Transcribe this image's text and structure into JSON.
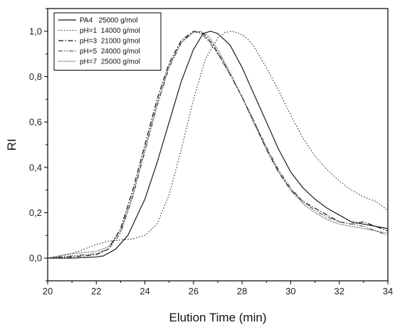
{
  "chart_data": {
    "type": "line",
    "title": "",
    "xlabel": "Elution Time (min)",
    "ylabel": "RI",
    "xlim": [
      20,
      34
    ],
    "ylim": [
      -0.1,
      1.1
    ],
    "x_ticks": [
      20,
      22,
      24,
      26,
      28,
      30,
      32,
      34
    ],
    "x_tick_labels": [
      "20",
      "22",
      "24",
      "26",
      "28",
      "30",
      "32",
      "34"
    ],
    "y_ticks": [
      0.0,
      0.2,
      0.4,
      0.6,
      0.8,
      1.0
    ],
    "y_tick_labels": [
      "0,0",
      "0,2",
      "0,4",
      "0,6",
      "0,8",
      "1,0"
    ],
    "grid": false,
    "legend_position": "top-left",
    "series": [
      {
        "name": "PA4   25000 g/mol",
        "style": "solid",
        "color": "#1a1a1a",
        "x": [
          20,
          21,
          22,
          22.3,
          22.8,
          23.3,
          24,
          24.5,
          25,
          25.5,
          26,
          26.4,
          26.7,
          27,
          27.5,
          28,
          28.5,
          29,
          29.5,
          30,
          30.5,
          31,
          31.5,
          32,
          32.5,
          33,
          33.5,
          34
        ],
        "y": [
          0,
          0,
          0.005,
          0.01,
          0.04,
          0.1,
          0.26,
          0.42,
          0.6,
          0.78,
          0.92,
          0.99,
          1.0,
          0.99,
          0.94,
          0.84,
          0.72,
          0.6,
          0.48,
          0.38,
          0.31,
          0.26,
          0.22,
          0.19,
          0.16,
          0.15,
          0.14,
          0.13
        ]
      },
      {
        "name": "pH=1  14000 g/mol",
        "style": "dotted",
        "color": "#333333",
        "x": [
          20,
          20.5,
          21,
          21.5,
          22,
          22.5,
          23,
          23.5,
          24,
          24.5,
          25,
          25.5,
          26,
          26.5,
          27,
          27.3,
          27.6,
          27.9,
          28.2,
          28.5,
          29,
          29.5,
          30,
          30.5,
          31,
          31.5,
          32,
          32.5,
          33,
          33.5,
          34
        ],
        "y": [
          0,
          0.01,
          0.02,
          0.04,
          0.06,
          0.075,
          0.08,
          0.085,
          0.1,
          0.15,
          0.28,
          0.48,
          0.7,
          0.88,
          0.97,
          0.995,
          1.0,
          0.99,
          0.97,
          0.93,
          0.84,
          0.74,
          0.63,
          0.53,
          0.45,
          0.39,
          0.34,
          0.3,
          0.27,
          0.25,
          0.21
        ]
      },
      {
        "name": "pH=3  21000 g/mol",
        "style": "dashdot",
        "color": "#111111",
        "x": [
          20,
          21,
          21.5,
          22,
          22.5,
          23,
          23.5,
          24,
          24.5,
          25,
          25.5,
          26,
          26.3,
          26.5,
          26.8,
          27.2,
          27.6,
          28,
          28.5,
          29,
          29.5,
          30,
          30.5,
          31,
          31.5,
          32,
          32.5,
          33,
          33.5,
          34
        ],
        "y": [
          0,
          0.005,
          0.01,
          0.015,
          0.04,
          0.13,
          0.3,
          0.5,
          0.7,
          0.86,
          0.96,
          1.0,
          0.995,
          0.98,
          0.94,
          0.87,
          0.79,
          0.71,
          0.6,
          0.48,
          0.38,
          0.3,
          0.25,
          0.22,
          0.19,
          0.16,
          0.15,
          0.16,
          0.14,
          0.12
        ]
      },
      {
        "name": "pH=5  24000 g/mol",
        "style": "dashdotdot",
        "color": "#555555",
        "x": [
          20,
          21,
          22,
          22.5,
          23,
          23.5,
          24,
          24.5,
          25,
          25.5,
          26,
          26.3,
          26.6,
          27,
          27.5,
          28,
          28.5,
          29,
          29.5,
          30,
          30.5,
          31,
          31.5,
          32,
          32.5,
          33,
          33.5,
          34
        ],
        "y": [
          0,
          0.01,
          0.02,
          0.04,
          0.11,
          0.27,
          0.47,
          0.67,
          0.84,
          0.95,
          1.0,
          0.99,
          0.96,
          0.9,
          0.81,
          0.71,
          0.6,
          0.49,
          0.39,
          0.31,
          0.25,
          0.21,
          0.18,
          0.16,
          0.15,
          0.14,
          0.12,
          0.1
        ]
      },
      {
        "name": "pH=7  25000 g/mol",
        "style": "densedot",
        "color": "#222222",
        "x": [
          20,
          20.5,
          21,
          21.5,
          22,
          22.5,
          23,
          23.5,
          24,
          24.5,
          25,
          25.5,
          26,
          26.3,
          26.6,
          27,
          27.5,
          28,
          28.5,
          29,
          29.5,
          30,
          30.5,
          31,
          31.5,
          32,
          32.5,
          33,
          33.5,
          34
        ],
        "y": [
          0,
          0.01,
          0.02,
          0.025,
          0.03,
          0.05,
          0.12,
          0.28,
          0.48,
          0.68,
          0.85,
          0.95,
          0.995,
          1.0,
          0.98,
          0.92,
          0.82,
          0.71,
          0.59,
          0.48,
          0.38,
          0.3,
          0.24,
          0.2,
          0.17,
          0.15,
          0.14,
          0.13,
          0.12,
          0.11
        ]
      }
    ]
  }
}
